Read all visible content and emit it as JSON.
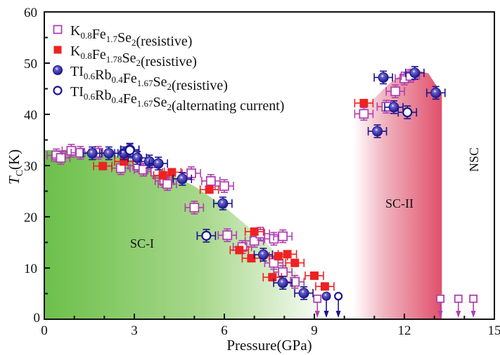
{
  "chart_data": {
    "type": "scatter",
    "title": "",
    "xlabel": "Pressure(GPa)",
    "ylabel": {
      "main": "T",
      "sub": "C",
      "unit": "(K)"
    },
    "xlim": [
      0,
      15
    ],
    "ylim": [
      0,
      60
    ],
    "xticks": [
      0,
      3,
      6,
      9,
      12,
      15
    ],
    "yticks": [
      0,
      10,
      20,
      30,
      40,
      50,
      60
    ],
    "x_minor_step": 1,
    "y_minor_step": 5,
    "grid": false,
    "legend_position": "top-left",
    "regions": [
      {
        "name": "SC-I",
        "label": "SC-I",
        "color": "#6cc04a",
        "boundary": [
          [
            0,
            33
          ],
          [
            1,
            33
          ],
          [
            2,
            32.5
          ],
          [
            3,
            31
          ],
          [
            4,
            29
          ],
          [
            5,
            26
          ],
          [
            6,
            22
          ],
          [
            7,
            17
          ],
          [
            8,
            11.5
          ],
          [
            9,
            5.5
          ],
          [
            9.6,
            0
          ]
        ]
      },
      {
        "name": "SC-II",
        "label": "SC-II",
        "color": "#e0506a",
        "x_range": [
          10.3,
          13.25
        ],
        "top": [
          [
            10.3,
            40
          ],
          [
            10.8,
            42
          ],
          [
            11.5,
            46
          ],
          [
            12.2,
            49
          ],
          [
            12.8,
            48
          ],
          [
            13.25,
            44
          ],
          [
            13.25,
            0
          ]
        ]
      },
      {
        "name": "NSC",
        "label": "NSC"
      }
    ],
    "series": [
      {
        "name": "K0.8Fe1.7Se2(resistive)",
        "legend": [
          [
            "K",
            ""
          ],
          [
            "0.8",
            "sub"
          ],
          [
            "Fe",
            ""
          ],
          [
            "1.7",
            "sub"
          ],
          [
            "Se",
            ""
          ],
          [
            "2",
            "sub"
          ],
          [
            "(resistive)",
            ""
          ]
        ],
        "marker": "open-square",
        "color": "#b040b0",
        "points": [
          [
            0.4,
            32
          ],
          [
            0.55,
            31.5
          ],
          [
            0.9,
            32.9
          ],
          [
            1.2,
            32.5
          ],
          [
            1.8,
            32.5
          ],
          [
            2.55,
            29.5
          ],
          [
            3.1,
            30
          ],
          [
            3.3,
            29.2
          ],
          [
            3.7,
            28.8
          ],
          [
            4.0,
            27
          ],
          [
            4.1,
            26.4
          ],
          [
            4.9,
            28.5
          ],
          [
            5.0,
            21.8
          ],
          [
            5.55,
            27
          ],
          [
            6.0,
            26
          ],
          [
            6.1,
            16.4
          ],
          [
            6.6,
            14.1
          ],
          [
            7.0,
            15.3
          ],
          [
            7.2,
            16.7
          ],
          [
            7.65,
            15.7
          ],
          [
            7.95,
            16.2
          ],
          [
            7.65,
            11
          ],
          [
            7.95,
            9.2
          ],
          [
            8.35,
            7.3
          ],
          [
            10.65,
            40.1
          ],
          [
            11.4,
            41.5
          ],
          [
            11.7,
            44.5
          ],
          [
            12.0,
            47
          ],
          [
            12.2,
            47.5
          ]
        ],
        "upper_limits": [
          [
            9.1,
            4
          ],
          [
            13.2,
            4
          ],
          [
            13.8,
            4
          ],
          [
            14.3,
            4
          ]
        ]
      },
      {
        "name": "K0.8Fe1.78Se2(resistive)",
        "legend": [
          [
            "K",
            ""
          ],
          [
            "0.8",
            "sub"
          ],
          [
            "Fe",
            ""
          ],
          [
            "1.78",
            "sub"
          ],
          [
            "Se",
            ""
          ],
          [
            "2",
            "sub"
          ],
          [
            "(resistive)",
            ""
          ]
        ],
        "marker": "filled-square",
        "color": "#ee2222",
        "points": [
          [
            1.95,
            29.9
          ],
          [
            2.65,
            30.8
          ],
          [
            3.95,
            28.1
          ],
          [
            4.25,
            28.7
          ],
          [
            5.5,
            25.3
          ],
          [
            6.5,
            13.5
          ],
          [
            6.9,
            11.9
          ],
          [
            7.0,
            17.1
          ],
          [
            7.6,
            8.2
          ],
          [
            7.8,
            12.3
          ],
          [
            8.1,
            12.7
          ],
          [
            8.35,
            11
          ],
          [
            9.0,
            8.5
          ],
          [
            9.35,
            6.4
          ],
          [
            10.65,
            42.2
          ]
        ],
        "upper_limits": []
      },
      {
        "name": "Tl0.6Rb0.4Fe1.67Se2(resistive)",
        "legend": [
          [
            "TI",
            ""
          ],
          [
            "0.6",
            "sub"
          ],
          [
            "Rb",
            ""
          ],
          [
            "0.4",
            "sub"
          ],
          [
            "Fe",
            ""
          ],
          [
            "1.67",
            "sub"
          ],
          [
            "Se",
            ""
          ],
          [
            "2",
            "sub"
          ],
          [
            "(resistive)",
            ""
          ]
        ],
        "marker": "filled-circle",
        "color": "#1a1490",
        "points": [
          [
            1.6,
            32.4
          ],
          [
            2.15,
            32.4
          ],
          [
            2.65,
            32.4
          ],
          [
            2.85,
            33.1
          ],
          [
            3.1,
            31.5
          ],
          [
            3.5,
            30.8
          ],
          [
            3.8,
            30.4
          ],
          [
            4.6,
            27.4
          ],
          [
            5.95,
            22.6
          ],
          [
            7.3,
            12.6
          ],
          [
            7.95,
            7.1
          ],
          [
            8.65,
            5.1
          ],
          [
            11.1,
            36.7
          ],
          [
            11.3,
            47.2
          ],
          [
            11.65,
            41.4
          ],
          [
            12.35,
            48.1
          ],
          [
            13.05,
            44.2
          ]
        ],
        "upper_limits": [
          [
            9.4,
            4.5
          ]
        ]
      },
      {
        "name": "Tl0.6Rb0.4Fe1.67Se2(alternating current)",
        "legend": [
          [
            "TI",
            ""
          ],
          [
            "0.6",
            "sub"
          ],
          [
            "Rb",
            ""
          ],
          [
            "0.4",
            "sub"
          ],
          [
            "Fe",
            ""
          ],
          [
            "1.67",
            "sub"
          ],
          [
            "Se",
            ""
          ],
          [
            "2",
            "sub"
          ],
          [
            "(alternating current)",
            ""
          ]
        ],
        "marker": "open-circle",
        "color": "#1a1490",
        "points": [
          [
            2.85,
            33
          ],
          [
            5.4,
            16.3
          ],
          [
            12.1,
            40.4
          ]
        ],
        "upper_limits": [
          [
            9.8,
            4.5
          ]
        ]
      }
    ]
  }
}
